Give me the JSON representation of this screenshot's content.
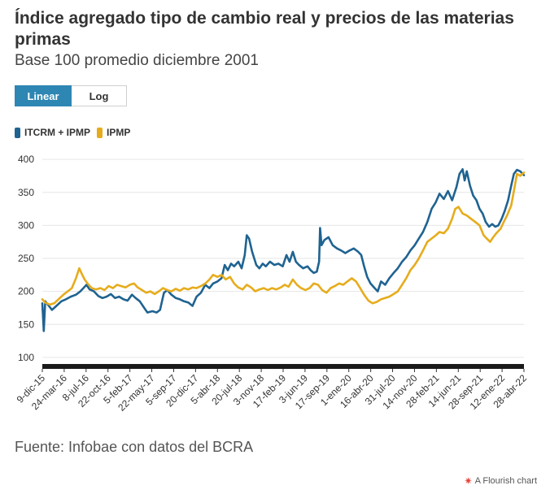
{
  "header": {
    "title": "Índice agregado tipo de cambio real y precios de las materias primas",
    "subtitle": "Base 100 promedio diciembre 2001"
  },
  "scale_toggle": {
    "options": [
      "Linear",
      "Log"
    ],
    "selected": "Linear"
  },
  "colors": {
    "itcrm": "#1f6391",
    "ipmp": "#e6ac1c",
    "toggle_active": "#2e86b3",
    "axis_band": "#1a1a1a",
    "grid": "#e6e6e6"
  },
  "footer": {
    "source": "Fuente: Infobae con datos del BCRA",
    "credit": "A Flourish chart",
    "credit_icon": "flourish-star-icon"
  },
  "chart_data": {
    "type": "line",
    "title": "Índice agregado tipo de cambio real y precios de las materias primas",
    "subtitle": "Base 100 promedio diciembre 2001",
    "xlabel": "",
    "ylabel": "",
    "ylim": [
      90,
      410
    ],
    "y_ticks": [
      100,
      150,
      200,
      250,
      300,
      350,
      400
    ],
    "x_ticks": [
      "9-dic-15",
      "24-mar-16",
      "8-jul-16",
      "22-oct-16",
      "5-feb-17",
      "22-may-17",
      "5-sep-17",
      "20-dic-17",
      "5-abr-18",
      "20-jul-18",
      "3-nov-18",
      "17-feb-19",
      "3-jun-19",
      "17-sep-19",
      "1-ene-20",
      "16-abr-20",
      "31-jul-20",
      "14-nov-20",
      "28-feb-21",
      "14-jun-21",
      "28-sep-21",
      "12-ene-22",
      "28-abr-22"
    ],
    "grid": true,
    "legend_position": "top-left",
    "series": [
      {
        "name": "ITCRM + IPMP",
        "color": "#1f6391",
        "points": [
          [
            "2015-12-09",
            182
          ],
          [
            "2015-12-16",
            140
          ],
          [
            "2015-12-23",
            185
          ],
          [
            "2016-01-05",
            180
          ],
          [
            "2016-01-25",
            172
          ],
          [
            "2016-02-15",
            178
          ],
          [
            "2016-03-10",
            185
          ],
          [
            "2016-04-01",
            188
          ],
          [
            "2016-04-25",
            192
          ],
          [
            "2016-05-20",
            195
          ],
          [
            "2016-06-10",
            200
          ],
          [
            "2016-06-25",
            205
          ],
          [
            "2016-07-10",
            210
          ],
          [
            "2016-07-25",
            203
          ],
          [
            "2016-08-15",
            200
          ],
          [
            "2016-09-05",
            193
          ],
          [
            "2016-09-25",
            190
          ],
          [
            "2016-10-15",
            192
          ],
          [
            "2016-11-05",
            196
          ],
          [
            "2016-11-25",
            190
          ],
          [
            "2016-12-15",
            192
          ],
          [
            "2017-01-05",
            188
          ],
          [
            "2017-01-25",
            186
          ],
          [
            "2017-02-15",
            195
          ],
          [
            "2017-03-05",
            190
          ],
          [
            "2017-03-25",
            185
          ],
          [
            "2017-04-15",
            175
          ],
          [
            "2017-05-01",
            168
          ],
          [
            "2017-05-25",
            170
          ],
          [
            "2017-06-15",
            168
          ],
          [
            "2017-07-01",
            172
          ],
          [
            "2017-07-20",
            198
          ],
          [
            "2017-08-05",
            202
          ],
          [
            "2017-08-25",
            195
          ],
          [
            "2017-09-15",
            190
          ],
          [
            "2017-10-05",
            188
          ],
          [
            "2017-10-25",
            185
          ],
          [
            "2017-11-15",
            183
          ],
          [
            "2017-12-05",
            178
          ],
          [
            "2017-12-25",
            192
          ],
          [
            "2018-01-15",
            198
          ],
          [
            "2018-02-05",
            210
          ],
          [
            "2018-02-25",
            205
          ],
          [
            "2018-03-15",
            212
          ],
          [
            "2018-04-05",
            215
          ],
          [
            "2018-04-25",
            220
          ],
          [
            "2018-05-10",
            240
          ],
          [
            "2018-05-25",
            232
          ],
          [
            "2018-06-10",
            242
          ],
          [
            "2018-06-25",
            238
          ],
          [
            "2018-07-15",
            245
          ],
          [
            "2018-07-31",
            235
          ],
          [
            "2018-08-15",
            255
          ],
          [
            "2018-08-25",
            285
          ],
          [
            "2018-09-05",
            280
          ],
          [
            "2018-09-20",
            260
          ],
          [
            "2018-10-10",
            240
          ],
          [
            "2018-10-25",
            235
          ],
          [
            "2018-11-10",
            242
          ],
          [
            "2018-11-25",
            238
          ],
          [
            "2018-12-15",
            245
          ],
          [
            "2019-01-05",
            240
          ],
          [
            "2019-01-25",
            242
          ],
          [
            "2019-02-15",
            238
          ],
          [
            "2019-03-05",
            255
          ],
          [
            "2019-03-20",
            245
          ],
          [
            "2019-04-05",
            260
          ],
          [
            "2019-04-20",
            245
          ],
          [
            "2019-05-05",
            240
          ],
          [
            "2019-05-25",
            235
          ],
          [
            "2019-06-15",
            238
          ],
          [
            "2019-06-30",
            232
          ],
          [
            "2019-07-15",
            228
          ],
          [
            "2019-07-30",
            230
          ],
          [
            "2019-08-10",
            245
          ],
          [
            "2019-08-15",
            296
          ],
          [
            "2019-08-22",
            270
          ],
          [
            "2019-09-05",
            278
          ],
          [
            "2019-09-25",
            282
          ],
          [
            "2019-10-15",
            270
          ],
          [
            "2019-11-05",
            265
          ],
          [
            "2019-11-25",
            262
          ],
          [
            "2019-12-15",
            258
          ],
          [
            "2020-01-05",
            262
          ],
          [
            "2020-01-25",
            265
          ],
          [
            "2020-02-15",
            260
          ],
          [
            "2020-03-01",
            255
          ],
          [
            "2020-03-15",
            238
          ],
          [
            "2020-03-30",
            222
          ],
          [
            "2020-04-15",
            212
          ],
          [
            "2020-05-05",
            205
          ],
          [
            "2020-05-20",
            200
          ],
          [
            "2020-06-05",
            215
          ],
          [
            "2020-06-25",
            210
          ],
          [
            "2020-07-15",
            220
          ],
          [
            "2020-08-05",
            228
          ],
          [
            "2020-08-25",
            235
          ],
          [
            "2020-09-15",
            245
          ],
          [
            "2020-10-05",
            252
          ],
          [
            "2020-10-25",
            262
          ],
          [
            "2020-11-15",
            270
          ],
          [
            "2020-12-05",
            280
          ],
          [
            "2020-12-25",
            290
          ],
          [
            "2021-01-15",
            305
          ],
          [
            "2021-02-05",
            325
          ],
          [
            "2021-02-25",
            335
          ],
          [
            "2021-03-15",
            348
          ],
          [
            "2021-04-05",
            340
          ],
          [
            "2021-04-25",
            352
          ],
          [
            "2021-05-15",
            338
          ],
          [
            "2021-06-05",
            358
          ],
          [
            "2021-06-20",
            378
          ],
          [
            "2021-07-05",
            385
          ],
          [
            "2021-07-15",
            368
          ],
          [
            "2021-07-25",
            382
          ],
          [
            "2021-08-10",
            360
          ],
          [
            "2021-08-25",
            345
          ],
          [
            "2021-09-10",
            338
          ],
          [
            "2021-09-25",
            325
          ],
          [
            "2021-10-10",
            318
          ],
          [
            "2021-10-25",
            305
          ],
          [
            "2021-11-10",
            298
          ],
          [
            "2021-11-25",
            302
          ],
          [
            "2021-12-10",
            298
          ],
          [
            "2021-12-25",
            300
          ],
          [
            "2022-01-10",
            310
          ],
          [
            "2022-01-25",
            322
          ],
          [
            "2022-02-10",
            338
          ],
          [
            "2022-02-25",
            360
          ],
          [
            "2022-03-10",
            378
          ],
          [
            "2022-03-25",
            384
          ],
          [
            "2022-04-10",
            382
          ],
          [
            "2022-04-28",
            376
          ]
        ]
      },
      {
        "name": "IPMP",
        "color": "#e6ac1c",
        "points": [
          [
            "2015-12-09",
            188
          ],
          [
            "2015-12-23",
            183
          ],
          [
            "2016-01-15",
            180
          ],
          [
            "2016-02-05",
            182
          ],
          [
            "2016-02-25",
            188
          ],
          [
            "2016-03-20",
            195
          ],
          [
            "2016-04-10",
            200
          ],
          [
            "2016-04-30",
            205
          ],
          [
            "2016-05-20",
            220
          ],
          [
            "2016-06-05",
            235
          ],
          [
            "2016-06-15",
            228
          ],
          [
            "2016-07-01",
            218
          ],
          [
            "2016-07-20",
            210
          ],
          [
            "2016-08-05",
            205
          ],
          [
            "2016-08-25",
            203
          ],
          [
            "2016-09-15",
            205
          ],
          [
            "2016-10-05",
            202
          ],
          [
            "2016-10-25",
            208
          ],
          [
            "2016-11-15",
            205
          ],
          [
            "2016-12-05",
            210
          ],
          [
            "2016-12-25",
            208
          ],
          [
            "2017-01-15",
            206
          ],
          [
            "2017-02-05",
            210
          ],
          [
            "2017-02-25",
            212
          ],
          [
            "2017-03-15",
            206
          ],
          [
            "2017-04-05",
            202
          ],
          [
            "2017-04-25",
            198
          ],
          [
            "2017-05-15",
            200
          ],
          [
            "2017-06-05",
            196
          ],
          [
            "2017-06-25",
            200
          ],
          [
            "2017-07-15",
            205
          ],
          [
            "2017-08-05",
            202
          ],
          [
            "2017-08-25",
            200
          ],
          [
            "2017-09-15",
            204
          ],
          [
            "2017-10-05",
            201
          ],
          [
            "2017-10-25",
            205
          ],
          [
            "2017-11-15",
            203
          ],
          [
            "2017-12-05",
            206
          ],
          [
            "2017-12-25",
            205
          ],
          [
            "2018-01-15",
            208
          ],
          [
            "2018-02-05",
            212
          ],
          [
            "2018-02-25",
            218
          ],
          [
            "2018-03-15",
            225
          ],
          [
            "2018-04-05",
            222
          ],
          [
            "2018-04-25",
            225
          ],
          [
            "2018-05-15",
            218
          ],
          [
            "2018-06-05",
            222
          ],
          [
            "2018-06-25",
            212
          ],
          [
            "2018-07-15",
            206
          ],
          [
            "2018-08-05",
            203
          ],
          [
            "2018-08-25",
            210
          ],
          [
            "2018-09-15",
            206
          ],
          [
            "2018-10-05",
            200
          ],
          [
            "2018-10-25",
            203
          ],
          [
            "2018-11-15",
            205
          ],
          [
            "2018-12-05",
            202
          ],
          [
            "2018-12-25",
            205
          ],
          [
            "2019-01-15",
            203
          ],
          [
            "2019-02-05",
            206
          ],
          [
            "2019-02-25",
            210
          ],
          [
            "2019-03-15",
            207
          ],
          [
            "2019-04-05",
            218
          ],
          [
            "2019-04-25",
            210
          ],
          [
            "2019-05-15",
            205
          ],
          [
            "2019-06-05",
            202
          ],
          [
            "2019-06-25",
            205
          ],
          [
            "2019-07-15",
            212
          ],
          [
            "2019-08-05",
            210
          ],
          [
            "2019-08-25",
            202
          ],
          [
            "2019-09-15",
            198
          ],
          [
            "2019-10-05",
            205
          ],
          [
            "2019-10-25",
            208
          ],
          [
            "2019-11-15",
            212
          ],
          [
            "2019-12-05",
            210
          ],
          [
            "2019-12-25",
            215
          ],
          [
            "2020-01-15",
            220
          ],
          [
            "2020-02-05",
            215
          ],
          [
            "2020-02-25",
            205
          ],
          [
            "2020-03-15",
            195
          ],
          [
            "2020-04-05",
            186
          ],
          [
            "2020-04-25",
            182
          ],
          [
            "2020-05-15",
            184
          ],
          [
            "2020-06-05",
            188
          ],
          [
            "2020-06-25",
            190
          ],
          [
            "2020-07-15",
            192
          ],
          [
            "2020-08-05",
            196
          ],
          [
            "2020-08-25",
            200
          ],
          [
            "2020-09-15",
            210
          ],
          [
            "2020-10-05",
            220
          ],
          [
            "2020-10-25",
            232
          ],
          [
            "2020-11-15",
            240
          ],
          [
            "2020-12-05",
            250
          ],
          [
            "2020-12-25",
            262
          ],
          [
            "2021-01-15",
            275
          ],
          [
            "2021-02-05",
            280
          ],
          [
            "2021-02-25",
            285
          ],
          [
            "2021-03-15",
            290
          ],
          [
            "2021-04-05",
            288
          ],
          [
            "2021-04-25",
            295
          ],
          [
            "2021-05-15",
            310
          ],
          [
            "2021-05-30",
            325
          ],
          [
            "2021-06-15",
            328
          ],
          [
            "2021-07-05",
            318
          ],
          [
            "2021-07-25",
            315
          ],
          [
            "2021-08-15",
            310
          ],
          [
            "2021-09-05",
            305
          ],
          [
            "2021-09-25",
            300
          ],
          [
            "2021-10-15",
            285
          ],
          [
            "2021-10-30",
            280
          ],
          [
            "2021-11-15",
            275
          ],
          [
            "2021-11-30",
            282
          ],
          [
            "2021-12-15",
            288
          ],
          [
            "2022-01-05",
            295
          ],
          [
            "2022-01-20",
            305
          ],
          [
            "2022-02-05",
            315
          ],
          [
            "2022-02-25",
            330
          ],
          [
            "2022-03-10",
            352
          ],
          [
            "2022-03-25",
            378
          ],
          [
            "2022-04-10",
            375
          ],
          [
            "2022-04-28",
            380
          ]
        ]
      }
    ]
  }
}
